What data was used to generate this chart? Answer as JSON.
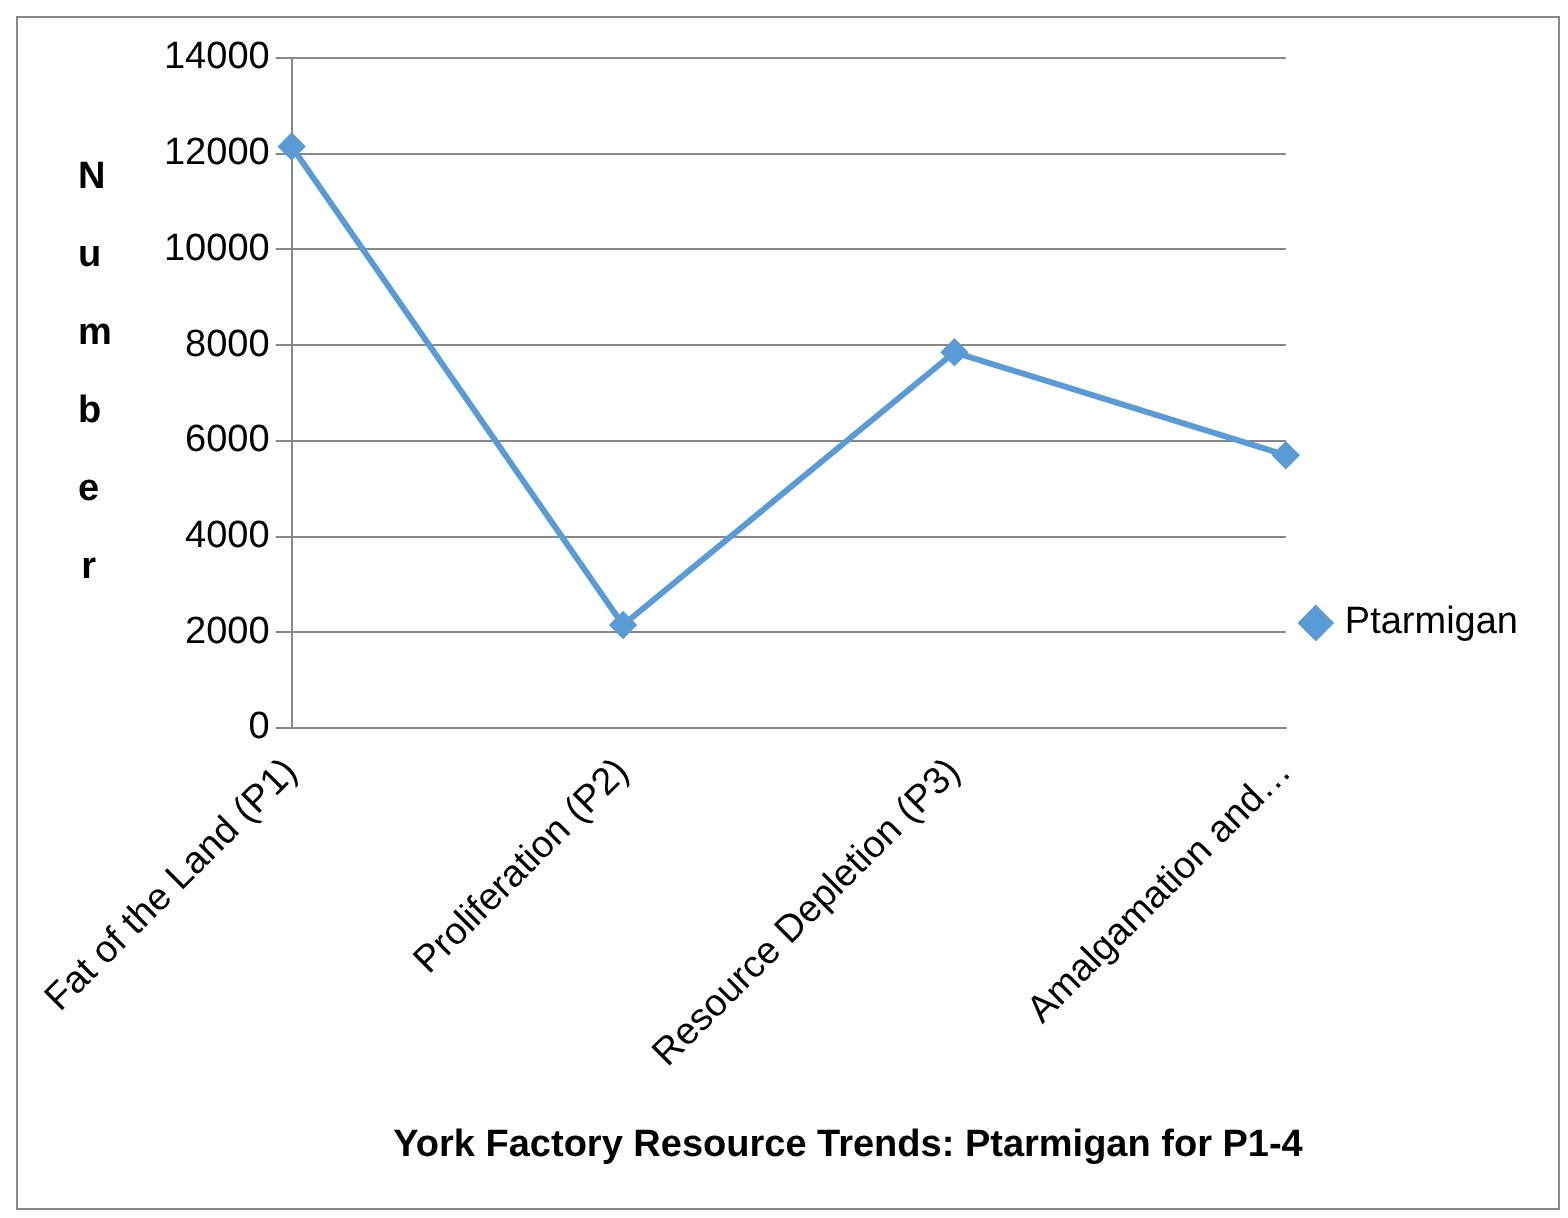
{
  "chart_data": {
    "type": "line",
    "title": "York Factory Resource Trends: Ptarmigan for P1-4",
    "ylabel": "Number",
    "categories": [
      "Fat of the Land (P1)",
      "Proliferation (P2)",
      "Resource Depletion (P3)",
      "Amalgamation and…"
    ],
    "series": [
      {
        "name": "Ptarmigan",
        "color": "#5b9bd5",
        "values": [
          12150,
          2150,
          7850,
          5700
        ]
      }
    ],
    "ylim": [
      0,
      14000
    ],
    "yticks": [
      0,
      2000,
      4000,
      6000,
      8000,
      10000,
      12000,
      14000
    ],
    "grid": "y",
    "legend": "right",
    "marker": "diamond",
    "line_style": "solid"
  }
}
